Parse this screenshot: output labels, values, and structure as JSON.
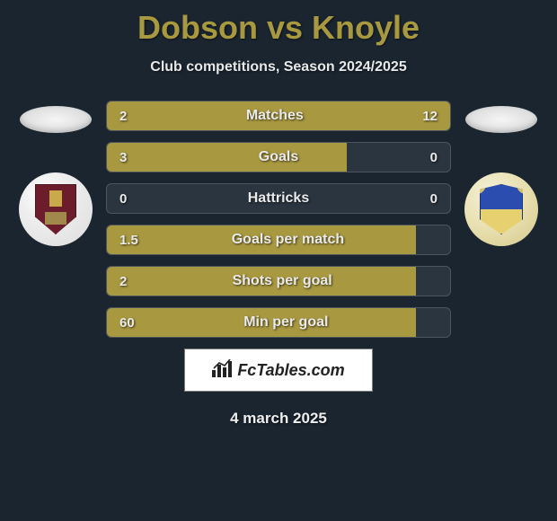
{
  "title": "Dobson vs Knoyle",
  "subtitle": "Club competitions, Season 2024/2025",
  "date": "4 march 2025",
  "brand": "FcTables.com",
  "colors": {
    "bar": "#a89840",
    "bar_border": "#8a7a30",
    "track": "#2a3540",
    "title": "#a89840",
    "text": "#eaeaea"
  },
  "left_player": {
    "name": "Dobson",
    "crest_primary": "#6b1d2b"
  },
  "right_player": {
    "name": "Knoyle",
    "crest_primary": "#2b4db0"
  },
  "stats": [
    {
      "label": "Matches",
      "left_val": "2",
      "right_val": "12",
      "left_pct": 14,
      "right_pct": 86
    },
    {
      "label": "Goals",
      "left_val": "3",
      "right_val": "0",
      "left_pct": 70,
      "right_pct": 0
    },
    {
      "label": "Hattricks",
      "left_val": "0",
      "right_val": "0",
      "left_pct": 0,
      "right_pct": 0
    },
    {
      "label": "Goals per match",
      "left_val": "1.5",
      "right_val": "",
      "left_pct": 90,
      "right_pct": 0
    },
    {
      "label": "Shots per goal",
      "left_val": "2",
      "right_val": "",
      "left_pct": 90,
      "right_pct": 0
    },
    {
      "label": "Min per goal",
      "left_val": "60",
      "right_val": "",
      "left_pct": 90,
      "right_pct": 0
    }
  ]
}
